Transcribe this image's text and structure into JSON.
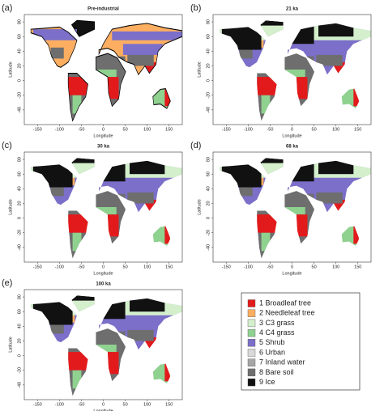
{
  "panels": [
    {
      "label": "(a)",
      "title": "Pre-industrial"
    },
    {
      "label": "(b)",
      "title": "21 ka"
    },
    {
      "label": "(c)",
      "title": "30 ka"
    },
    {
      "label": "(d)",
      "title": "68 ka"
    },
    {
      "label": "(e)",
      "title": "100 ka"
    }
  ],
  "axes": {
    "xlabel": "Longitude",
    "ylabel": "Latitude",
    "xlim": [
      -180,
      180
    ],
    "ylim": [
      -60,
      90
    ],
    "xticks": [
      -150,
      -100,
      -50,
      0,
      50,
      100,
      150
    ],
    "yticks": [
      -40,
      -20,
      0,
      20,
      40,
      60,
      80
    ]
  },
  "legend": [
    {
      "label": "1 Broadleaf tree",
      "color": "#e31a1c"
    },
    {
      "label": "2 Needleleaf tree",
      "color": "#fdae61"
    },
    {
      "label": "3 C3 grass",
      "color": "#d4efcc"
    },
    {
      "label": "4 C4 grass",
      "color": "#8fd18f"
    },
    {
      "label": "5 Shrub",
      "color": "#7b6fc9"
    },
    {
      "label": "6 Urban",
      "color": "#d9d9d9"
    },
    {
      "label": "7 Inland water",
      "color": "#a6a6a6"
    },
    {
      "label": "8 Bare soil",
      "color": "#6e6e6e"
    },
    {
      "label": "9 Ice",
      "color": "#111111"
    }
  ]
}
